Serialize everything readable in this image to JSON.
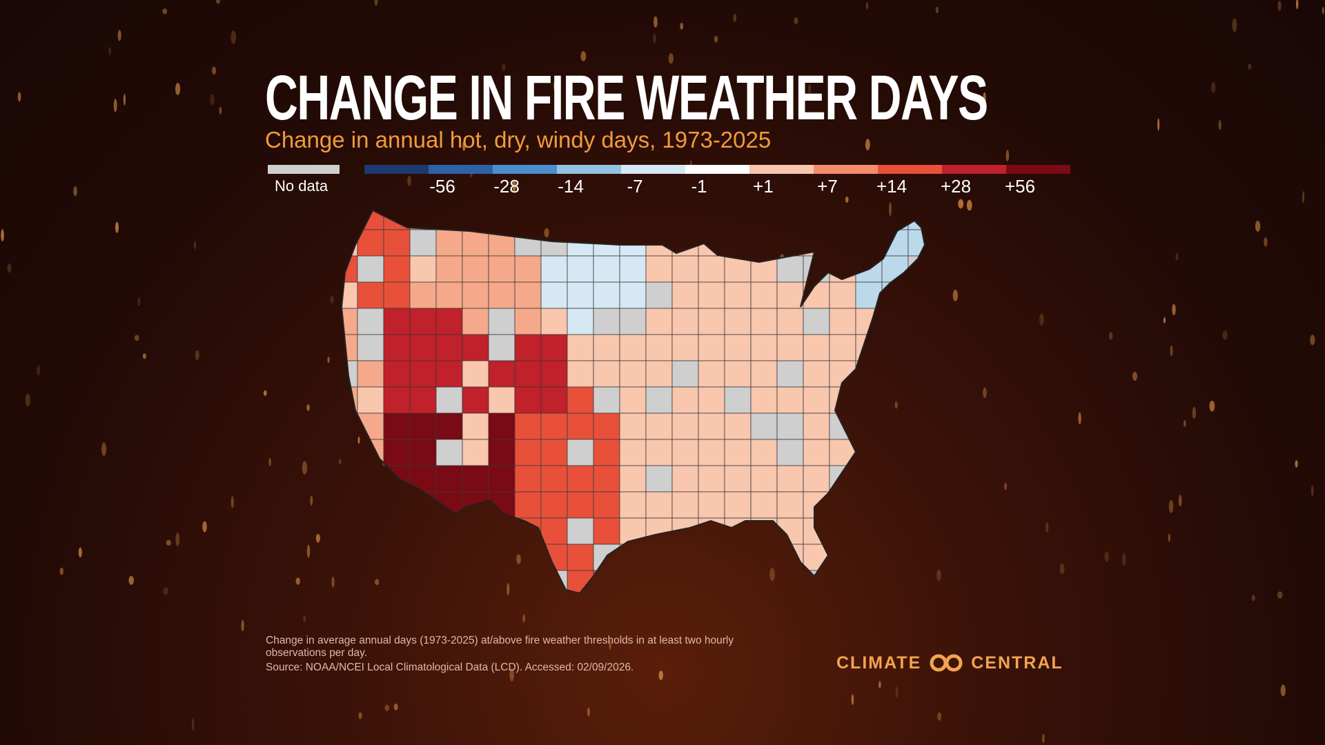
{
  "title": "CHANGE IN FIRE WEATHER DAYS",
  "subtitle": "Change in annual hot, dry, windy days, 1973-2025",
  "legend": {
    "no_data_label": "No data",
    "no_data_color": "#cfcfcf",
    "bin_colors": [
      "#1d3a6e",
      "#2e62a6",
      "#4b8fcc",
      "#94c2e4",
      "#d5e8f3",
      "#ffffff",
      "#f9c6ae",
      "#f28c6c",
      "#e8503a",
      "#c0212a",
      "#7a0a14"
    ],
    "tick_labels": [
      "-56",
      "-28",
      "-14",
      "-7",
      "-1",
      "+1",
      "+7",
      "+14",
      "+28",
      "+56"
    ]
  },
  "map": {
    "description_free": true,
    "regions": [
      {
        "name": "west-coast",
        "category": "+7"
      },
      {
        "name": "pacific-northwest",
        "category": "+14"
      },
      {
        "name": "great-basin",
        "category": "+28"
      },
      {
        "name": "desert-southwest",
        "category": "+56"
      },
      {
        "name": "four-corners",
        "category": "+28"
      },
      {
        "name": "southern-plains",
        "category": "+14"
      },
      {
        "name": "northern-plains",
        "category": "-1"
      },
      {
        "name": "northern-rockies",
        "category": "+7"
      },
      {
        "name": "midwest",
        "category": "+1"
      },
      {
        "name": "northeast",
        "category": "-7"
      },
      {
        "name": "southeast",
        "category": "+1"
      },
      {
        "name": "florida",
        "category": "+1"
      }
    ]
  },
  "footnote": "Change in average annual days (1973-2025) at/above fire weather thresholds in at least two hourly observations per day.",
  "source": "Source: NOAA/NCEI Local Climatological Data (LCD). Accessed: 02/09/2026.",
  "brand": {
    "left": "CLIMATE",
    "right": "CENTRAL",
    "color": "#f2a450"
  }
}
